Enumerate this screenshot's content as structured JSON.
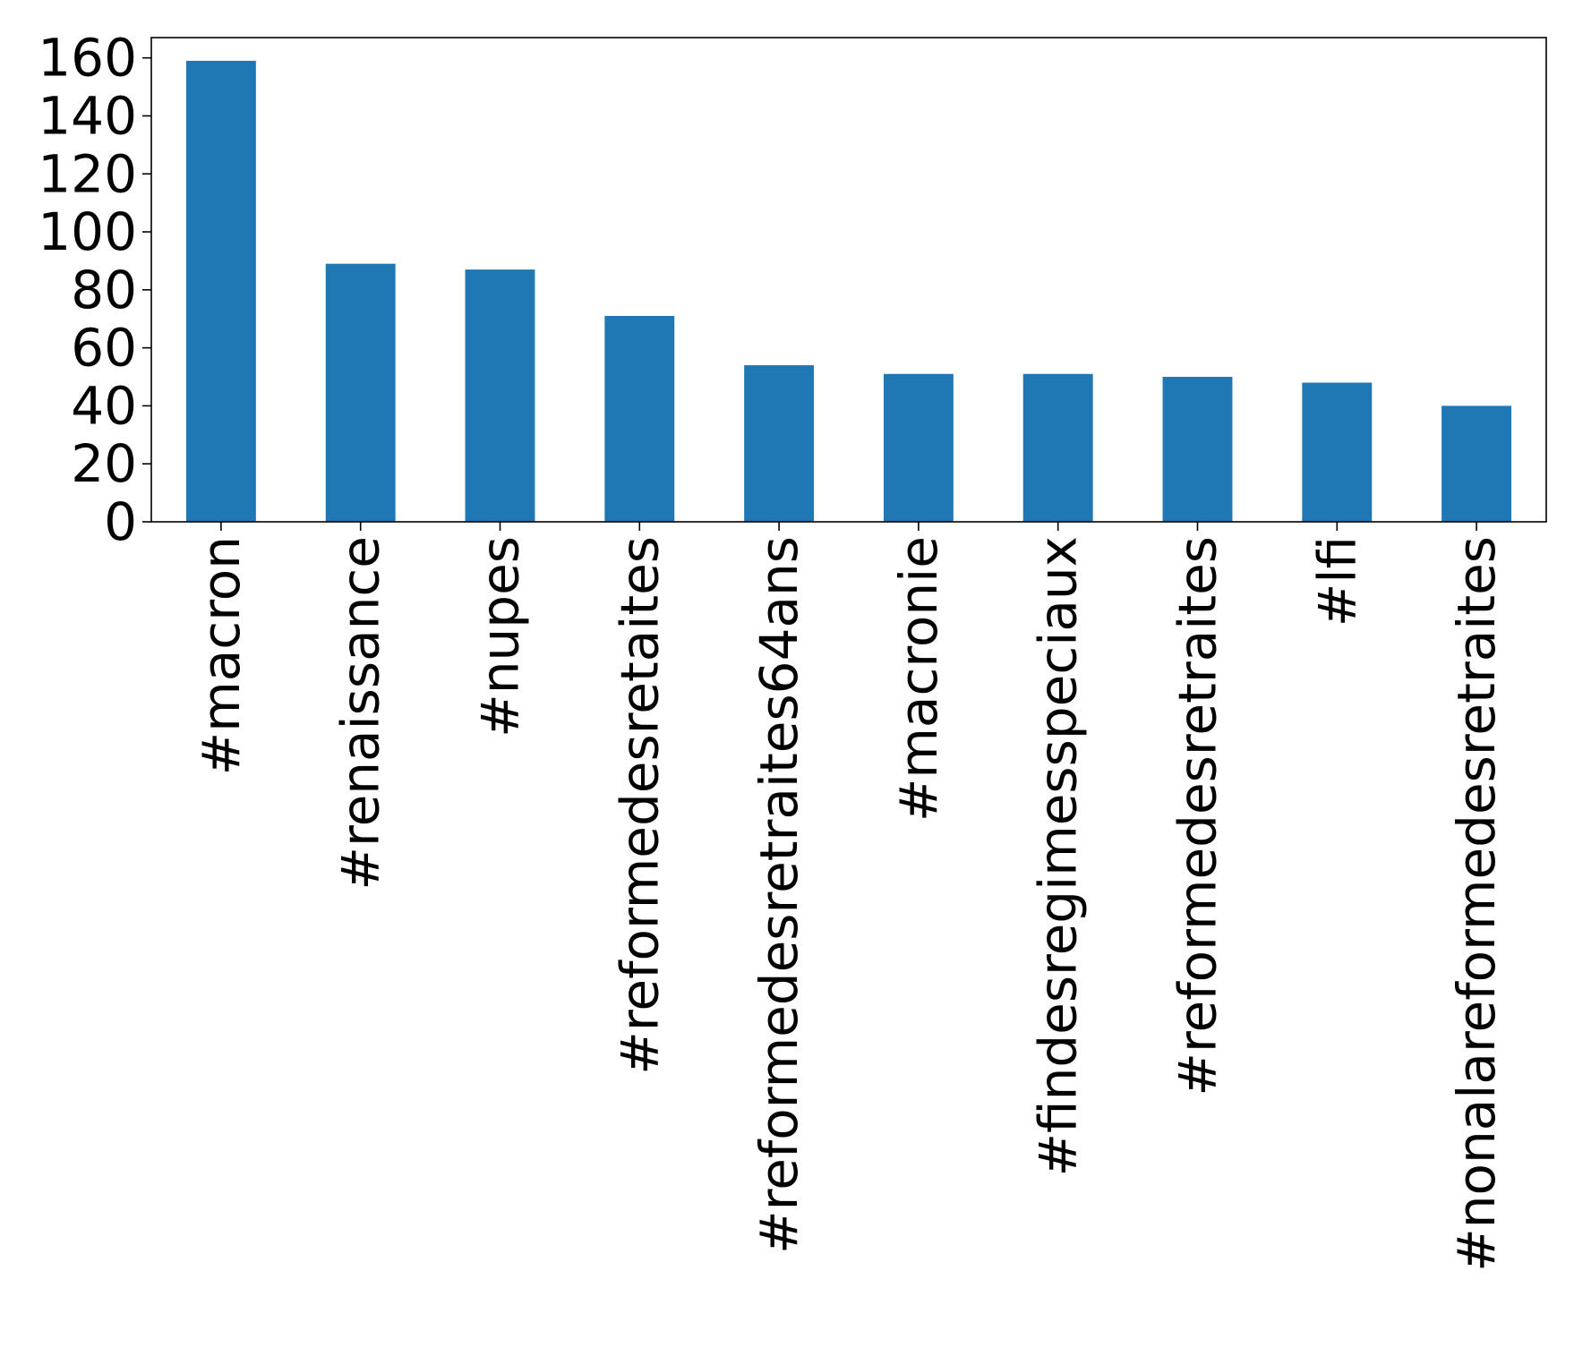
{
  "chart_data": {
    "type": "bar",
    "title": "",
    "xlabel": "",
    "ylabel": "",
    "categories": [
      "#macron",
      "#renaissance",
      "#nupes",
      "#reformedesretaites",
      "#reformedesretraites64ans",
      "#macronie",
      "#findesregimesspeciaux",
      "#reformedesretraites",
      "#lfi",
      "#nonalareformedesretraites"
    ],
    "values": [
      159,
      89,
      87,
      71,
      54,
      51,
      51,
      50,
      48,
      40
    ],
    "ylim": [
      0,
      167
    ],
    "yticks": [
      0,
      20,
      40,
      60,
      80,
      100,
      120,
      140,
      160
    ],
    "grid": false,
    "bar_color": "#1f77b4"
  }
}
